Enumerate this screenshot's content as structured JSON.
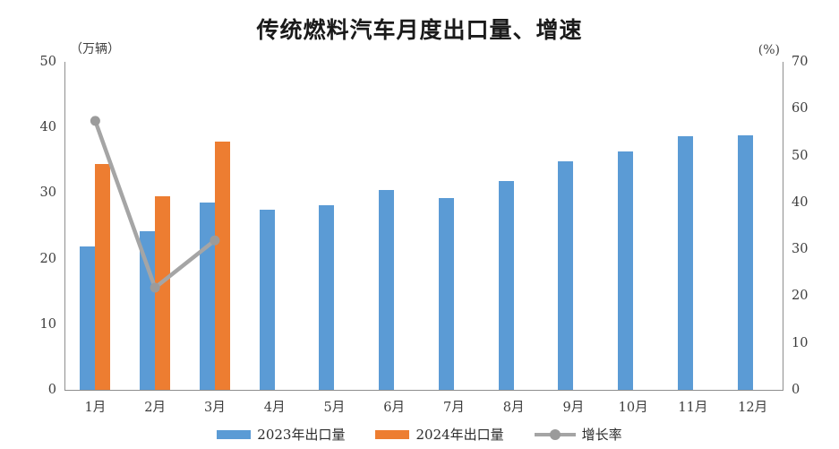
{
  "page": {
    "background": "#ffffff"
  },
  "chart_data": {
    "type": "combo-bar-line",
    "title": "传统燃料汽车月度出口量、增速",
    "categories": [
      "1月",
      "2月",
      "3月",
      "4月",
      "5月",
      "6月",
      "7月",
      "8月",
      "9月",
      "10月",
      "11月",
      "12月"
    ],
    "left_axis": {
      "unit": "（万辆）",
      "min": 0,
      "max": 50,
      "ticks": [
        0,
        10,
        20,
        30,
        40,
        50
      ]
    },
    "right_axis": {
      "unit": "(%)",
      "min": 0,
      "max": 70,
      "ticks": [
        0,
        10,
        20,
        30,
        40,
        50,
        60,
        70
      ]
    },
    "grid": "off",
    "legend_position": "bottom",
    "series": [
      {
        "name": "2023年出口量",
        "render": "bar",
        "axis": "left",
        "color": "#5b9bd5",
        "values": [
          21.9,
          24.2,
          28.6,
          27.5,
          28.1,
          30.5,
          29.2,
          31.9,
          34.9,
          36.4,
          38.7,
          38.8
        ]
      },
      {
        "name": "2024年出口量",
        "render": "bar",
        "axis": "left",
        "color": "#ed7d31",
        "values": [
          34.4,
          29.5,
          37.8,
          null,
          null,
          null,
          null,
          null,
          null,
          null,
          null,
          null
        ]
      },
      {
        "name": "增长率",
        "render": "line",
        "axis": "right",
        "color": "#a5a5a5",
        "marker_color": "#9b9b9b",
        "values": [
          57.4,
          21.8,
          31.9,
          null,
          null,
          null,
          null,
          null,
          null,
          null,
          null,
          null
        ]
      }
    ]
  }
}
